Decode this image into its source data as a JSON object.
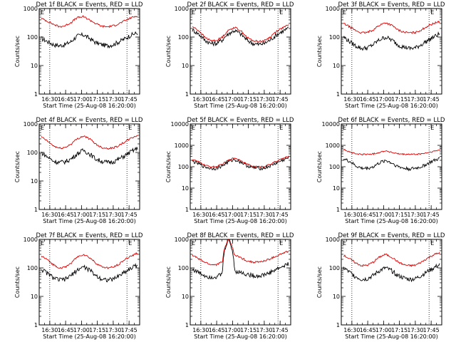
{
  "colors": {
    "events": "#000000",
    "lld": "#dd0000",
    "axes": "#000000",
    "background": "#ffffff"
  },
  "chart_data": [
    {
      "type": "line",
      "title": "Det 1f BLACK = Events, RED = LLD",
      "xlabel": "Start Time (25-Aug-08 16:20:00)",
      "ylabel": "Counts/sec",
      "y_scale": "log",
      "ylim": [
        1,
        1000
      ],
      "y_ticks": [
        1,
        10,
        100,
        1000
      ],
      "y_tick_labels": [
        "1",
        "10",
        "100",
        "1000"
      ],
      "x_tick_labels": [
        "16:30",
        "16:45",
        "17:00",
        "17:15",
        "17:30",
        "17:45"
      ],
      "x_range": [
        "16:20",
        "17:55"
      ],
      "marker_labels": [
        "E",
        "E"
      ],
      "dotted_lines": [
        "16:30",
        "17:43"
      ],
      "series": [
        {
          "color": "#000000",
          "values": [
            90,
            70,
            55,
            50,
            55,
            70,
            110,
            120,
            90,
            65,
            55,
            50,
            55,
            70,
            90,
            120,
            140
          ]
        },
        {
          "color": "#dd0000",
          "values": [
            450,
            360,
            280,
            230,
            250,
            330,
            480,
            520,
            400,
            300,
            240,
            230,
            250,
            300,
            380,
            480,
            560
          ]
        }
      ]
    },
    {
      "type": "line",
      "title": "Det 2f BLACK = Events, RED = LLD",
      "xlabel": "Start Time (25-Aug-08 16:20:00)",
      "ylabel": "Counts/sec",
      "y_scale": "log",
      "ylim": [
        1,
        1000
      ],
      "y_ticks": [
        1,
        10,
        100,
        1000
      ],
      "y_tick_labels": [
        "1",
        "10",
        "100",
        "1000"
      ],
      "x_tick_labels": [
        "16:30",
        "16:45",
        "17:00",
        "17:15",
        "17:30",
        "17:45"
      ],
      "x_range": [
        "16:20",
        "17:55"
      ],
      "marker_labels": [
        "E",
        "E"
      ],
      "dotted_lines": [
        "16:30",
        "17:43"
      ],
      "series": [
        {
          "color": "#000000",
          "values": [
            180,
            130,
            80,
            60,
            60,
            80,
            130,
            170,
            130,
            80,
            60,
            55,
            60,
            80,
            120,
            160,
            200
          ]
        },
        {
          "color": "#dd0000",
          "values": [
            230,
            170,
            100,
            75,
            75,
            100,
            170,
            220,
            170,
            100,
            75,
            70,
            75,
            100,
            160,
            210,
            260
          ]
        }
      ]
    },
    {
      "type": "line",
      "title": "Det 3f BLACK = Events, RED = LLD",
      "xlabel": "Start Time (25-Aug-08 16:20:00)",
      "ylabel": "Counts/sec",
      "y_scale": "log",
      "ylim": [
        1,
        1000
      ],
      "y_ticks": [
        1,
        10,
        100,
        1000
      ],
      "y_tick_labels": [
        "1",
        "10",
        "100",
        "1000"
      ],
      "x_tick_labels": [
        "16:30",
        "16:45",
        "17:00",
        "17:15",
        "17:30",
        "17:45"
      ],
      "x_range": [
        "16:20",
        "17:55"
      ],
      "marker_labels": [
        "E",
        "E"
      ],
      "dotted_lines": [
        "16:30",
        "17:43"
      ],
      "series": [
        {
          "color": "#000000",
          "values": [
            100,
            70,
            50,
            40,
            42,
            55,
            80,
            100,
            80,
            55,
            45,
            40,
            42,
            55,
            75,
            100,
            130
          ]
        },
        {
          "color": "#dd0000",
          "values": [
            300,
            230,
            170,
            140,
            145,
            180,
            260,
            320,
            260,
            180,
            150,
            140,
            145,
            180,
            240,
            300,
            350
          ]
        }
      ]
    },
    {
      "type": "line",
      "title": "Det 4f BLACK = Events, RED = LLD",
      "xlabel": "Start Time (25-Aug-08 16:20:00)",
      "ylabel": "Counts/sec",
      "y_scale": "log",
      "ylim": [
        1,
        1000
      ],
      "y_ticks": [
        1,
        10,
        100,
        1000
      ],
      "y_tick_labels": [
        "1",
        "10",
        "100",
        "1000"
      ],
      "x_tick_labels": [
        "16:30",
        "16:45",
        "17:00",
        "17:15",
        "17:30",
        "17:45"
      ],
      "x_range": [
        "16:20",
        "17:55"
      ],
      "marker_labels": [
        "E",
        "E"
      ],
      "dotted_lines": [
        "16:30",
        "17:43"
      ],
      "series": [
        {
          "color": "#000000",
          "values": [
            100,
            70,
            50,
            45,
            48,
            60,
            90,
            120,
            90,
            60,
            50,
            45,
            48,
            60,
            80,
            110,
            140
          ]
        },
        {
          "color": "#dd0000",
          "values": [
            350,
            250,
            170,
            140,
            150,
            200,
            300,
            380,
            300,
            200,
            150,
            140,
            145,
            180,
            240,
            320,
            400
          ]
        }
      ]
    },
    {
      "type": "line",
      "title": "Det 5f BLACK = Events, RED = LLD",
      "xlabel": "Start Time (25-Aug-08 16:20:00)",
      "ylabel": "Counts/sec",
      "y_scale": "log",
      "ylim": [
        1,
        10000
      ],
      "y_ticks": [
        1,
        10,
        100,
        1000,
        10000
      ],
      "y_tick_labels": [
        "1",
        "10",
        "100",
        "1000",
        "10000"
      ],
      "x_tick_labels": [
        "16:30",
        "16:45",
        "17:00",
        "17:15",
        "17:30",
        "17:45"
      ],
      "x_range": [
        "16:20",
        "17:55"
      ],
      "marker_labels": [
        "E",
        "E"
      ],
      "dotted_lines": [
        "16:30",
        "17:43"
      ],
      "series": [
        {
          "color": "#000000",
          "values": [
            180,
            140,
            100,
            85,
            85,
            110,
            170,
            220,
            170,
            115,
            90,
            85,
            88,
            110,
            150,
            200,
            260
          ]
        },
        {
          "color": "#dd0000",
          "values": [
            220,
            170,
            120,
            100,
            100,
            130,
            200,
            260,
            200,
            135,
            105,
            100,
            105,
            130,
            180,
            240,
            300
          ]
        }
      ]
    },
    {
      "type": "line",
      "title": "Det 6f BLACK = Events, RED = LLD",
      "xlabel": "Start Time (25-Aug-08 16:20:00)",
      "ylabel": "Counts/sec",
      "y_scale": "log",
      "ylim": [
        1,
        10000
      ],
      "y_ticks": [
        1,
        10,
        100,
        1000,
        10000
      ],
      "y_tick_labels": [
        "1",
        "10",
        "100",
        "1000",
        "10000"
      ],
      "x_tick_labels": [
        "16:30",
        "16:45",
        "17:00",
        "17:15",
        "17:30",
        "17:45"
      ],
      "x_range": [
        "16:20",
        "17:55"
      ],
      "marker_labels": [
        "E",
        "E"
      ],
      "dotted_lines": [
        "16:30",
        "17:43"
      ],
      "series": [
        {
          "color": "#000000",
          "values": [
            230,
            180,
            110,
            85,
            85,
            100,
            150,
            200,
            150,
            105,
            85,
            80,
            85,
            100,
            140,
            190,
            240
          ]
        },
        {
          "color": "#dd0000",
          "values": [
            650,
            500,
            400,
            380,
            380,
            400,
            470,
            560,
            470,
            400,
            380,
            380,
            380,
            400,
            450,
            520,
            600
          ]
        }
      ]
    },
    {
      "type": "line",
      "title": "Det 7f BLACK = Events, RED = LLD",
      "xlabel": "Start Time (25-Aug-08 16:20:00)",
      "ylabel": "Counts/sec",
      "y_scale": "log",
      "ylim": [
        1,
        1000
      ],
      "y_ticks": [
        1,
        10,
        100,
        1000
      ],
      "y_tick_labels": [
        "1",
        "10",
        "100",
        "1000"
      ],
      "x_tick_labels": [
        "16:30",
        "16:45",
        "17:00",
        "17:15",
        "17:30",
        "17:45"
      ],
      "x_range": [
        "16:20",
        "17:55"
      ],
      "marker_labels": [
        "E",
        "E"
      ],
      "dotted_lines": [
        "16:30",
        "17:43"
      ],
      "series": [
        {
          "color": "#000000",
          "values": [
            90,
            65,
            45,
            38,
            40,
            55,
            85,
            110,
            85,
            55,
            42,
            38,
            40,
            55,
            75,
            100,
            130
          ]
        },
        {
          "color": "#dd0000",
          "values": [
            260,
            190,
            130,
            100,
            105,
            150,
            240,
            300,
            230,
            150,
            110,
            100,
            105,
            140,
            200,
            270,
            330
          ]
        }
      ]
    },
    {
      "type": "line",
      "title": "Det 8f BLACK = Events, RED = LLD",
      "xlabel": "Start Time (25-Aug-08 16:20:00)",
      "ylabel": "Counts/sec",
      "y_scale": "log",
      "ylim": [
        1,
        1000
      ],
      "y_ticks": [
        1,
        10,
        100,
        1000
      ],
      "y_tick_labels": [
        "1",
        "10",
        "100",
        "1000"
      ],
      "x_tick_labels": [
        "16:30",
        "16:45",
        "17:00",
        "17:15",
        "17:30",
        "17:45"
      ],
      "x_range": [
        "16:20",
        "17:55"
      ],
      "marker_labels": [
        "E",
        "E"
      ],
      "dotted_lines": [
        "16:30",
        "17:43"
      ],
      "series": [
        {
          "color": "#000000",
          "values": [
            90,
            70,
            55,
            48,
            50,
            60,
            1000,
            80,
            70,
            60,
            55,
            52,
            58,
            70,
            90,
            110,
            140
          ]
        },
        {
          "color": "#dd0000",
          "values": [
            280,
            210,
            160,
            130,
            130,
            160,
            1000,
            280,
            230,
            180,
            160,
            160,
            175,
            210,
            260,
            320,
            380
          ]
        }
      ]
    },
    {
      "type": "line",
      "title": "Det 9f BLACK = Events, RED = LLD",
      "xlabel": "Start Time (25-Aug-08 16:20:00)",
      "ylabel": "Counts/sec",
      "y_scale": "log",
      "ylim": [
        1,
        1000
      ],
      "y_ticks": [
        1,
        10,
        100,
        1000
      ],
      "y_tick_labels": [
        "1",
        "10",
        "100",
        "1000"
      ],
      "x_tick_labels": [
        "16:30",
        "16:45",
        "17:00",
        "17:15",
        "17:30",
        "17:45"
      ],
      "x_range": [
        "16:20",
        "17:55"
      ],
      "marker_labels": [
        "E",
        "E"
      ],
      "dotted_lines": [
        "16:30",
        "17:43"
      ],
      "series": [
        {
          "color": "#000000",
          "values": [
            100,
            70,
            50,
            40,
            42,
            55,
            80,
            100,
            80,
            55,
            45,
            40,
            42,
            55,
            75,
            100,
            130
          ]
        },
        {
          "color": "#dd0000",
          "values": [
            280,
            210,
            150,
            120,
            125,
            160,
            240,
            300,
            240,
            165,
            130,
            120,
            125,
            160,
            220,
            290,
            340
          ]
        }
      ]
    }
  ]
}
